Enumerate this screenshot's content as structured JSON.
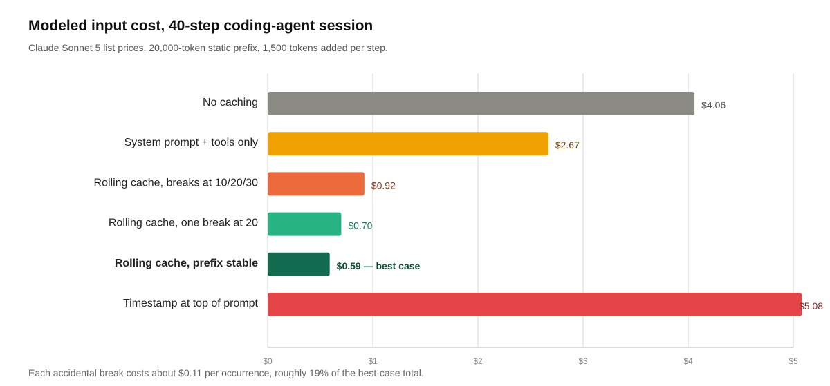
{
  "chart_data": {
    "type": "bar",
    "orientation": "horizontal",
    "title": "Modeled input cost, 40-step coding-agent session",
    "subtitle": "Claude Sonnet 5 list prices. 20,000-token static prefix, 1,500 tokens added per step.",
    "footnote": "Each accidental break costs about $0.11 per occurrence, roughly 19% of the best-case total.",
    "categories": [
      "No caching",
      "System prompt + tools only",
      "Rolling cache, breaks at 10/20/30",
      "Rolling cache, one break at 20",
      "Rolling cache, prefix stable",
      "Timestamp at top of prompt"
    ],
    "values": [
      4.06,
      2.67,
      0.92,
      0.7,
      0.59,
      5.08
    ],
    "value_labels": [
      "$4.06",
      "$2.67",
      "$0.92",
      "$0.70",
      "$0.59 — best case",
      "$5.08"
    ],
    "bar_colors": [
      "#8c8a84",
      "#f0a202",
      "#ec6a3c",
      "#27b482",
      "#126b4e",
      "#e64547"
    ],
    "label_colors": [
      "#555555",
      "#7a4a10",
      "#8a3a20",
      "#1a7a5a",
      "#0f4f38",
      "#8a2a2a"
    ],
    "emphasized": [
      false,
      false,
      false,
      false,
      true,
      false
    ],
    "xlim": [
      0,
      5
    ],
    "x_ticks": [
      0,
      1,
      2,
      3,
      4,
      5
    ],
    "x_tick_labels": [
      "$0",
      "$1",
      "$2",
      "$3",
      "$4",
      "$5"
    ],
    "grid": "vertical",
    "legend": "none"
  }
}
